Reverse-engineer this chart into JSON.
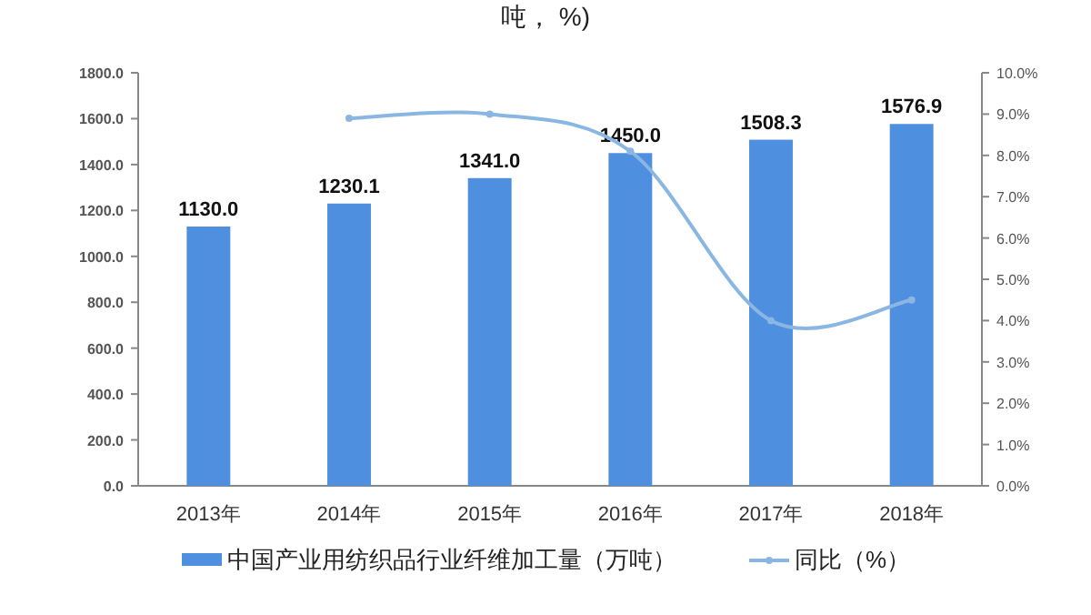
{
  "chart_data": {
    "type": "bar",
    "title": "吨， %)",
    "categories": [
      "2013年",
      "2014年",
      "2015年",
      "2016年",
      "2017年",
      "2018年"
    ],
    "series": [
      {
        "name": "中国产业用纺织品行业纤维加工量（万吨）",
        "color": "#4f8fdf",
        "values": [
          1130.0,
          1230.1,
          1341.0,
          1450.0,
          1508.3,
          1576.9
        ],
        "value_labels": [
          "1130.0",
          "1230.1",
          "1341.0",
          "1450.0",
          "1508.3",
          "1576.9"
        ]
      },
      {
        "name": "同比（%）",
        "type": "line",
        "axis": "y2",
        "color": "#8ab6e2",
        "marker": "circle",
        "values": [
          null,
          8.9,
          9.0,
          8.1,
          4.0,
          4.5
        ]
      }
    ],
    "ylim": [
      0,
      1800
    ],
    "yticks": [
      {
        "value": 0,
        "label": "0.0"
      },
      {
        "value": 200,
        "label": "200.0"
      },
      {
        "value": 400,
        "label": "400.0"
      },
      {
        "value": 600,
        "label": "600.0"
      },
      {
        "value": 800,
        "label": "800.0"
      },
      {
        "value": 1000,
        "label": "1000.0"
      },
      {
        "value": 1200,
        "label": "1200.0"
      },
      {
        "value": 1400,
        "label": "1400.0"
      },
      {
        "value": 1600,
        "label": "1600.0"
      },
      {
        "value": 1800,
        "label": "1800.0"
      }
    ],
    "y2lim": [
      0,
      10
    ],
    "y2ticks": [
      {
        "value": 0,
        "label": "0.0%"
      },
      {
        "value": 1,
        "label": "1.0%"
      },
      {
        "value": 2,
        "label": "2.0%"
      },
      {
        "value": 3,
        "label": "3.0%"
      },
      {
        "value": 4,
        "label": "4.0%"
      },
      {
        "value": 5,
        "label": "5.0%"
      },
      {
        "value": 6,
        "label": "6.0%"
      },
      {
        "value": 7,
        "label": "7.0%"
      },
      {
        "value": 8,
        "label": "8.0%"
      },
      {
        "value": 9,
        "label": "9.0%"
      },
      {
        "value": 10,
        "label": "10.0%"
      }
    ],
    "grid": false,
    "legend": "bottom"
  }
}
